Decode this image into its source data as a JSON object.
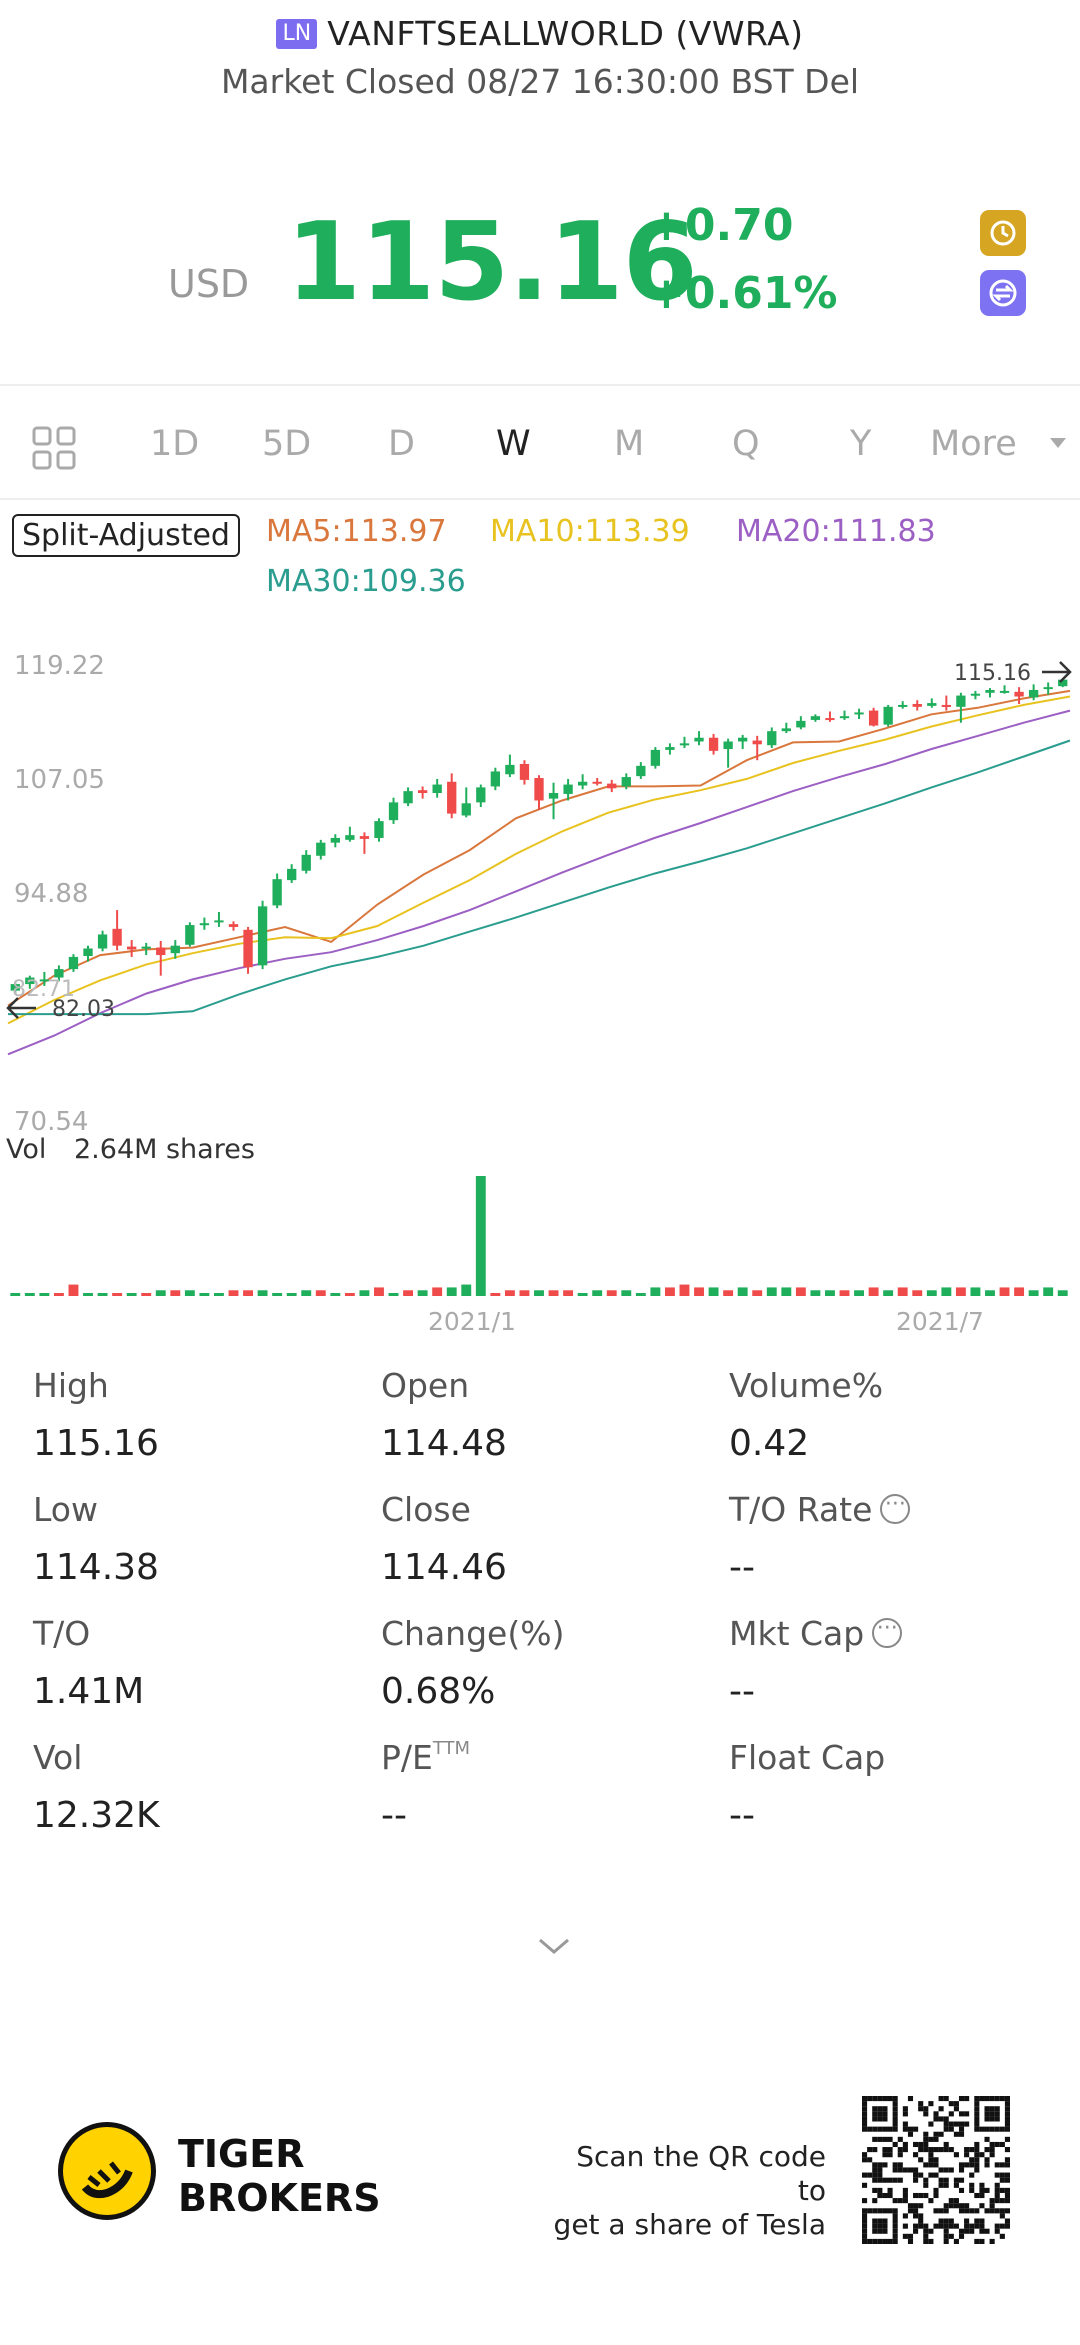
{
  "header": {
    "exchange_badge": "LN",
    "title": "VANFTSEALLWORLD (VWRA)",
    "subtitle": "Market Closed 08/27 16:30:00 BST Del"
  },
  "quote": {
    "currency": "USD",
    "price": "115.16",
    "change_abs": "+0.70",
    "change_pct": "+0.61%",
    "color_up": "#1fae5b",
    "icons": [
      "history-icon",
      "switch-icon"
    ]
  },
  "tabs": {
    "items": [
      "1D",
      "5D",
      "D",
      "W",
      "M",
      "Q",
      "Y"
    ],
    "active": "W",
    "more": "More"
  },
  "indicators": {
    "split_adjusted": "Split-Adjusted",
    "ma5": "MA5:113.97",
    "ma10": "MA10:113.39",
    "ma20": "MA20:111.83",
    "ma30": "MA30:109.36",
    "colors": {
      "ma5": "#d9773c",
      "ma10": "#e8c31f",
      "ma20": "#9c5fc4",
      "ma30": "#2a9d8f"
    }
  },
  "chart_data": {
    "type": "candlestick",
    "price_axis": {
      "ticks": [
        "119.22",
        "107.05",
        "94.88",
        "70.54"
      ],
      "ylim": [
        70.54,
        119.22
      ]
    },
    "last_price_label": "115.16",
    "low_label": "82.03",
    "partial_label": "82.71",
    "volume": {
      "label": "Vol",
      "value": "2.64M shares"
    },
    "x_ticks": [
      "2021/1",
      "2021/7"
    ],
    "grid": false,
    "candles": [
      [
        82.0,
        82.7,
        81.6,
        82.9
      ],
      [
        82.7,
        83.4,
        82.2,
        83.6
      ],
      [
        83.0,
        83.2,
        82.5,
        84.0
      ],
      [
        83.4,
        84.3,
        83.0,
        84.7
      ],
      [
        84.3,
        85.6,
        84.0,
        85.9
      ],
      [
        85.7,
        86.5,
        85.1,
        86.8
      ],
      [
        86.5,
        88.0,
        86.2,
        88.4
      ],
      [
        88.6,
        86.8,
        86.3,
        90.6
      ],
      [
        86.7,
        86.4,
        85.6,
        87.4
      ],
      [
        86.5,
        86.7,
        85.8,
        87.1
      ],
      [
        86.6,
        85.8,
        83.6,
        87.3
      ],
      [
        86.0,
        86.8,
        85.4,
        87.4
      ],
      [
        86.9,
        89.0,
        86.7,
        89.3
      ],
      [
        89.0,
        89.2,
        88.5,
        89.8
      ],
      [
        89.4,
        89.5,
        88.8,
        90.4
      ],
      [
        89.1,
        88.8,
        88.4,
        89.4
      ],
      [
        88.5,
        84.5,
        83.8,
        88.8
      ],
      [
        84.7,
        91.0,
        84.3,
        91.6
      ],
      [
        91.1,
        93.9,
        90.8,
        94.5
      ],
      [
        93.8,
        95.0,
        93.5,
        95.5
      ],
      [
        94.8,
        96.5,
        94.5,
        97.0
      ],
      [
        96.4,
        97.8,
        96.0,
        98.1
      ],
      [
        97.8,
        98.3,
        97.3,
        98.7
      ],
      [
        98.1,
        98.6,
        97.9,
        99.5
      ],
      [
        98.5,
        98.2,
        96.6,
        98.9
      ],
      [
        98.3,
        100.1,
        97.9,
        100.4
      ],
      [
        100.2,
        102.1,
        99.8,
        102.6
      ],
      [
        102.0,
        103.3,
        101.7,
        103.7
      ],
      [
        103.4,
        103.1,
        102.5,
        103.8
      ],
      [
        103.1,
        104.0,
        102.6,
        104.6
      ],
      [
        104.3,
        100.9,
        100.4,
        105.2
      ],
      [
        100.7,
        102.0,
        100.5,
        103.7
      ],
      [
        102.1,
        103.7,
        101.6,
        104.0
      ],
      [
        103.8,
        105.4,
        103.4,
        105.8
      ],
      [
        105.1,
        106.1,
        104.8,
        107.2
      ],
      [
        106.2,
        104.5,
        104.0,
        106.6
      ],
      [
        104.7,
        102.3,
        101.3,
        105.0
      ],
      [
        102.5,
        103.1,
        100.3,
        104.2
      ],
      [
        103.0,
        104.0,
        102.3,
        104.6
      ],
      [
        103.9,
        104.3,
        103.5,
        105.1
      ],
      [
        104.3,
        104.2,
        103.9,
        104.7
      ],
      [
        104.1,
        103.6,
        103.2,
        104.5
      ],
      [
        103.8,
        104.8,
        103.5,
        105.2
      ],
      [
        104.9,
        106.0,
        104.6,
        106.4
      ],
      [
        106.0,
        107.7,
        105.7,
        108.0
      ],
      [
        107.7,
        108.0,
        107.2,
        108.4
      ],
      [
        108.3,
        108.4,
        107.9,
        109.1
      ],
      [
        108.6,
        109.0,
        108.2,
        109.7
      ],
      [
        109.0,
        107.6,
        107.2,
        109.4
      ],
      [
        107.8,
        108.6,
        105.8,
        108.9
      ],
      [
        108.6,
        109.0,
        107.8,
        109.3
      ],
      [
        108.7,
        108.3,
        106.6,
        109.2
      ],
      [
        108.2,
        109.7,
        107.9,
        110.1
      ],
      [
        109.7,
        110.0,
        109.5,
        110.6
      ],
      [
        110.1,
        110.8,
        109.9,
        111.3
      ],
      [
        110.9,
        111.3,
        110.7,
        111.5
      ],
      [
        111.1,
        111.0,
        110.7,
        111.8
      ],
      [
        111.1,
        111.3,
        110.9,
        111.9
      ],
      [
        111.5,
        111.7,
        111.0,
        112.1
      ],
      [
        111.9,
        110.3,
        110.2,
        112.2
      ],
      [
        110.4,
        112.3,
        110.2,
        112.5
      ],
      [
        112.4,
        112.5,
        112.1,
        112.9
      ],
      [
        112.6,
        112.3,
        111.9,
        113.0
      ],
      [
        112.4,
        112.7,
        112.2,
        113.2
      ],
      [
        112.5,
        112.4,
        111.9,
        113.5
      ],
      [
        112.3,
        113.5,
        110.6,
        113.8
      ],
      [
        113.6,
        113.7,
        113.1,
        114.0
      ],
      [
        113.8,
        114.1,
        113.3,
        114.3
      ],
      [
        114.0,
        114.0,
        113.7,
        114.6
      ],
      [
        113.9,
        113.4,
        112.6,
        114.4
      ],
      [
        113.3,
        114.1,
        113.0,
        114.7
      ],
      [
        114.2,
        114.4,
        113.6,
        114.9
      ],
      [
        114.5,
        115.2,
        114.4,
        115.3
      ]
    ],
    "series": [
      {
        "name": "MA5",
        "color": "#d9773c",
        "values": [
          80.4,
          83.6,
          85.8,
          86.4,
          86.6,
          87.7,
          88.8,
          87.2,
          91.2,
          94.4,
          97.0,
          100.4,
          102.3,
          103.8,
          103.8,
          103.9,
          106.6,
          108.5,
          108.6,
          110.0,
          111.5,
          112.2,
          113.2,
          114.0
        ]
      },
      {
        "name": "MA10",
        "color": "#e8c31f",
        "values": [
          78.5,
          81.0,
          83.1,
          84.8,
          86.0,
          87.0,
          87.7,
          87.6,
          88.9,
          91.4,
          93.8,
          96.6,
          99.0,
          101.0,
          102.4,
          103.4,
          104.6,
          106.3,
          107.6,
          108.8,
          110.2,
          111.4,
          112.5,
          113.4
        ]
      },
      {
        "name": "MA20",
        "color": "#9c5fc4",
        "values": [
          75.2,
          77.2,
          79.6,
          81.7,
          83.2,
          84.4,
          85.4,
          86.1,
          87.4,
          88.9,
          90.6,
          92.6,
          94.6,
          96.5,
          98.3,
          99.9,
          101.6,
          103.3,
          104.8,
          106.2,
          107.8,
          109.2,
          110.6,
          111.9
        ]
      },
      {
        "name": "MA30",
        "color": "#2a9d8f",
        "values": [
          79.5,
          79.5,
          79.5,
          79.5,
          79.8,
          81.6,
          83.2,
          84.6,
          85.6,
          86.8,
          88.3,
          89.8,
          91.4,
          93.0,
          94.5,
          95.8,
          97.2,
          98.8,
          100.4,
          102.0,
          103.7,
          105.3,
          107.0,
          108.7
        ]
      }
    ],
    "volumes": [
      1,
      1,
      1,
      1,
      4,
      1,
      1,
      1,
      1,
      1,
      2,
      2,
      2,
      1,
      1,
      2,
      2,
      2,
      1,
      1,
      2,
      2,
      1,
      1,
      2,
      3,
      1,
      2,
      2,
      3,
      3,
      4,
      42,
      1,
      2,
      2,
      2,
      2,
      2,
      1,
      2,
      2,
      2,
      1,
      3,
      3,
      4,
      3,
      3,
      2,
      3,
      2,
      3,
      3,
      3,
      2,
      2,
      2,
      2,
      3,
      2,
      3,
      2,
      2,
      3,
      3,
      3,
      2,
      3,
      3,
      2,
      3,
      2
    ],
    "volume_colors_up": [
      true,
      true,
      true,
      false,
      false,
      true,
      true,
      false,
      true,
      false,
      true,
      false,
      true,
      true,
      true,
      false,
      false,
      true,
      true,
      true,
      true,
      false,
      true,
      false,
      true,
      false,
      true,
      false,
      true,
      false,
      true,
      true,
      true,
      false,
      false,
      false,
      true,
      false,
      false,
      true,
      true,
      false,
      true,
      true,
      true,
      false,
      false,
      false,
      true,
      false,
      true,
      false,
      true,
      true,
      false,
      true,
      true,
      false,
      true,
      false,
      true,
      false,
      false,
      true,
      true,
      false,
      true,
      true,
      false,
      false,
      true,
      true,
      true
    ]
  },
  "stats": {
    "high_label": "High",
    "high_value": "115.16",
    "open_label": "Open",
    "open_value": "114.48",
    "volpct_label": "Volume%",
    "volpct_value": "0.42",
    "low_label": "Low",
    "low_value": "114.38",
    "close_label": "Close",
    "close_value": "114.46",
    "torate_label": "T/O Rate",
    "torate_value": "--",
    "to_label": "T/O",
    "to_value": "1.41M",
    "chg_label": "Change(%)",
    "chg_value": "0.68%",
    "mktcap_label": "Mkt Cap",
    "mktcap_value": "--",
    "vol_label": "Vol",
    "vol_value": "12.32K",
    "pe_label": "P/E",
    "pe_sup": "TTM",
    "pe_value": "--",
    "floatcap_label": "Float Cap",
    "floatcap_value": "--"
  },
  "footer": {
    "brand_line1": "TIGER",
    "brand_line2": "BROKERS",
    "scan_line1": "Scan the QR code to",
    "scan_line2": "get a share of Tesla"
  }
}
